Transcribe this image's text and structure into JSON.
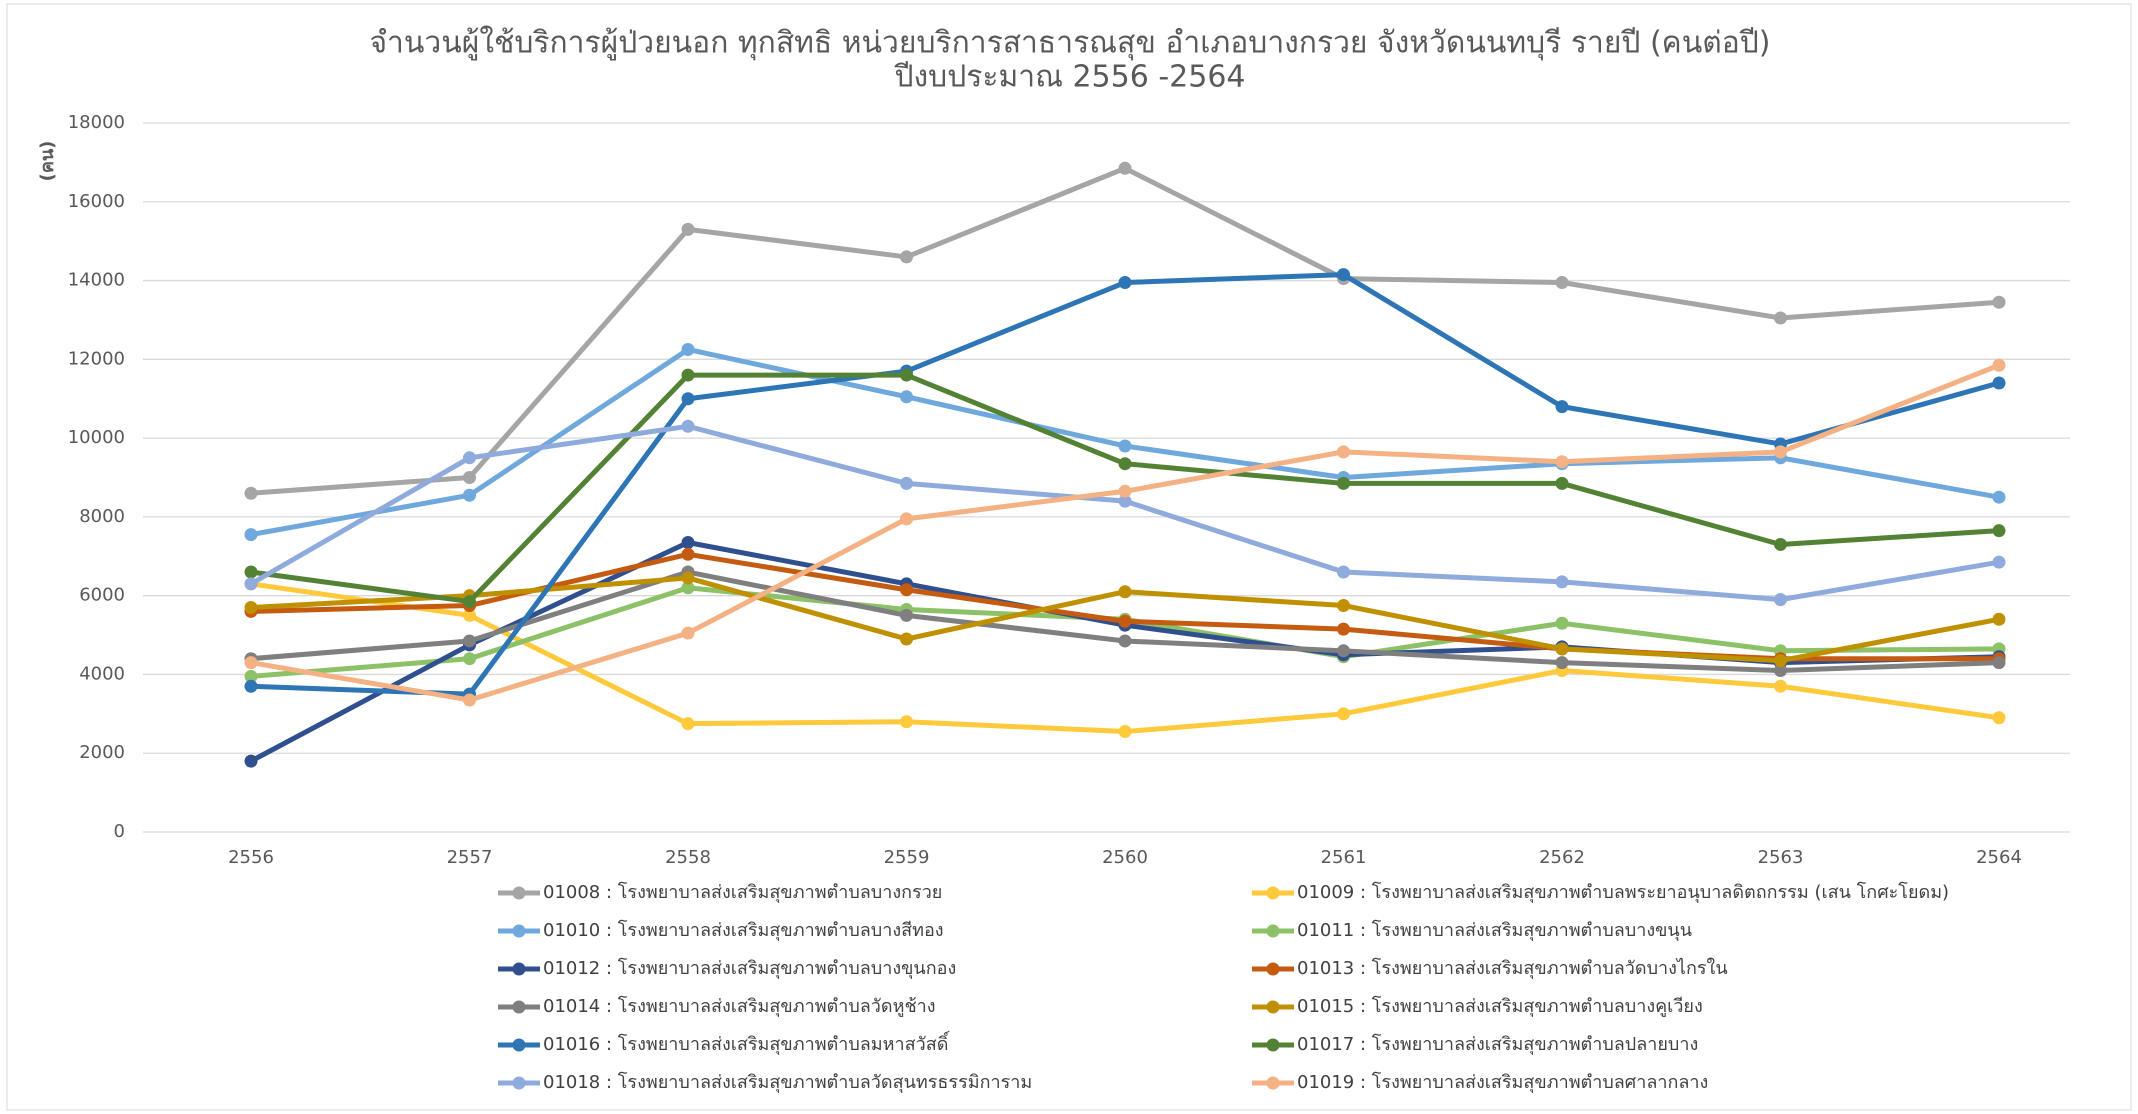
{
  "chart_data": {
    "type": "line",
    "title": "จำนวนผู้ใช้บริการผู้ป่วยนอก ทุกสิทธิ หน่วยบริการสาธารณสุข อำเภอบางกรวย จังหวัดนนทบุรี  รายปี (คนต่อปี)",
    "subtitle": "ปีงบประมาณ 2556 -2564",
    "y_label": "(คน)",
    "categories": [
      "2556",
      "2557",
      "2558",
      "2559",
      "2560",
      "2561",
      "2562",
      "2563",
      "2564"
    ],
    "ylim": [
      0,
      18000
    ],
    "yticks": [
      0,
      2000,
      4000,
      6000,
      8000,
      10000,
      12000,
      14000,
      16000,
      18000
    ],
    "grid": true,
    "series": [
      {
        "name": "01008 : โรงพยาบาลส่งเสริมสุขภาพตำบลบางกรวย",
        "color": "#a5a5a5",
        "values": [
          8600,
          9000,
          15300,
          14600,
          16850,
          14050,
          13950,
          13050,
          13450
        ]
      },
      {
        "name": "01009 : โรงพยาบาลส่งเสริมสุขภาพตำบลพระยาอนุบาลดิตถกรรม (เสน โกศะโยดม)",
        "color": "#ffc93c",
        "values": [
          6300,
          5500,
          2750,
          2800,
          2550,
          3000,
          4100,
          3700,
          2900
        ]
      },
      {
        "name": "01010 : โรงพยาบาลส่งเสริมสุขภาพตำบลบางสีทอง",
        "color": "#6fa8dc",
        "values": [
          7550,
          8550,
          12250,
          11050,
          9800,
          9000,
          9350,
          9500,
          8500
        ]
      },
      {
        "name": "01011 : โรงพยาบาลส่งเสริมสุขภาพตำบลบางขนุน",
        "color": "#8cc168",
        "values": [
          3950,
          4400,
          6200,
          5650,
          5400,
          4450,
          5300,
          4600,
          4650
        ]
      },
      {
        "name": "01012 : โรงพยาบาลส่งเสริมสุขภาพตำบลบางขุนกอง",
        "color": "#2f4f8f",
        "values": [
          1800,
          4750,
          7350,
          6300,
          5250,
          4500,
          4700,
          4300,
          4450
        ]
      },
      {
        "name": "01013 : โรงพยาบาลส่งเสริมสุขภาพตำบลวัดบางไกรใน",
        "color": "#c55a11",
        "values": [
          5600,
          5750,
          7050,
          6150,
          5350,
          5150,
          4650,
          4400,
          4400
        ]
      },
      {
        "name": "01014 : โรงพยาบาลส่งเสริมสุขภาพตำบลวัดหูช้าง",
        "color": "#7f7f7f",
        "values": [
          4400,
          4850,
          6600,
          5500,
          4850,
          4600,
          4300,
          4100,
          4300
        ]
      },
      {
        "name": "01015 : โรงพยาบาลส่งเสริมสุขภาพตำบลบางคูเวียง",
        "color": "#bf9000",
        "values": [
          5700,
          6000,
          6450,
          4900,
          6100,
          5750,
          4650,
          4350,
          5400
        ]
      },
      {
        "name": "01016 : โรงพยาบาลส่งเสริมสุขภาพตำบลมหาสวัสดิ์",
        "color": "#2e75b6",
        "values": [
          3700,
          3500,
          11000,
          11700,
          13950,
          14150,
          10800,
          9850,
          11400
        ]
      },
      {
        "name": "01017 : โรงพยาบาลส่งเสริมสุขภาพตำบลปลายบาง",
        "color": "#548235",
        "values": [
          6600,
          5850,
          11600,
          11600,
          9350,
          8850,
          8850,
          7300,
          7650
        ]
      },
      {
        "name": "01018 : โรงพยาบาลส่งเสริมสุขภาพตำบลวัดสุนทรธรรมิการาม",
        "color": "#8faadc",
        "values": [
          6300,
          9500,
          10300,
          8850,
          8400,
          6600,
          6350,
          5900,
          6850
        ]
      },
      {
        "name": "01019 : โรงพยาบาลส่งเสริมสุขภาพตำบลศาลากลาง",
        "color": "#f4b183",
        "values": [
          4300,
          3350,
          5050,
          7950,
          8650,
          9650,
          9400,
          9650,
          11850
        ]
      }
    ]
  }
}
